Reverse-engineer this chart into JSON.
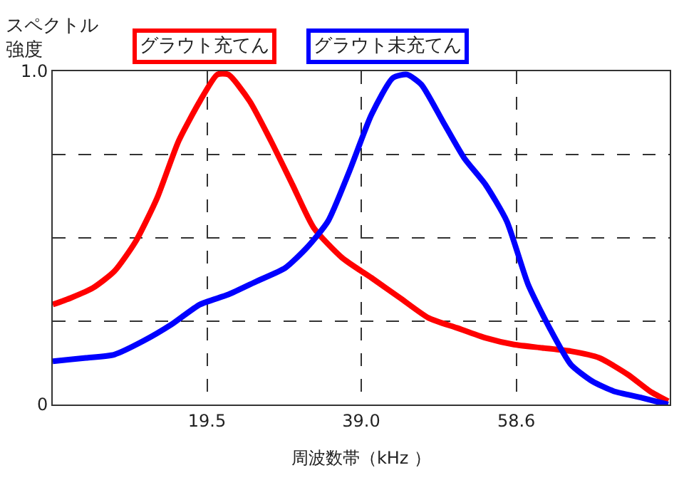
{
  "chart_data": {
    "type": "line",
    "xlabel": "周波数帯（kHz ）",
    "ylabel": "スペクトル強度",
    "xlim": [
      0,
      78
    ],
    "xticks": [
      19.5,
      {
        "value": 39,
        "label": "39.0"
      },
      58.6
    ],
    "ylim": [
      0,
      1
    ],
    "yticks": [
      0,
      {
        "value": 0.25,
        "label": null
      },
      {
        "value": 0.5,
        "label": null
      },
      {
        "value": 0.75,
        "label": null
      },
      {
        "value": 1,
        "label": "1.0"
      }
    ],
    "grid": true,
    "legend": "top",
    "marker": "none",
    "line_style": "solid",
    "series": [
      {
        "name": "グラウト充てん",
        "color": "#ff0000",
        "x": [
          0,
          2.3,
          5.1,
          7.8,
          10.5,
          13.2,
          15.9,
          18.6,
          20.8,
          22.2,
          24.9,
          27.6,
          30.3,
          33.0,
          36.6,
          40.3,
          43.9,
          47.5,
          51.1,
          54.7,
          58.3,
          61.9,
          65.5,
          69.1,
          72.7,
          75.5,
          77.8
        ],
        "values": [
          0.3,
          0.32,
          0.35,
          0.4,
          0.49,
          0.62,
          0.79,
          0.91,
          0.99,
          0.99,
          0.91,
          0.79,
          0.66,
          0.53,
          0.44,
          0.38,
          0.32,
          0.26,
          0.23,
          0.2,
          0.18,
          0.17,
          0.16,
          0.14,
          0.09,
          0.04,
          0.01
        ]
      },
      {
        "name": "グラウト未充てん",
        "color": "#0000ff",
        "x": [
          0,
          4.2,
          7.8,
          11.4,
          15.0,
          18.6,
          22.2,
          25.8,
          29.4,
          32.1,
          34.8,
          37.5,
          40.3,
          43.0,
          44.8,
          46.6,
          49.3,
          52.0,
          54.7,
          57.4,
          60.1,
          62.8,
          65.5,
          68.2,
          70.9,
          74.5,
          77.8
        ],
        "values": [
          0.13,
          0.14,
          0.15,
          0.19,
          0.24,
          0.3,
          0.33,
          0.37,
          0.41,
          0.47,
          0.55,
          0.7,
          0.87,
          0.98,
          0.99,
          0.96,
          0.85,
          0.74,
          0.66,
          0.55,
          0.36,
          0.23,
          0.12,
          0.07,
          0.04,
          0.02,
          0.0
        ]
      }
    ]
  }
}
